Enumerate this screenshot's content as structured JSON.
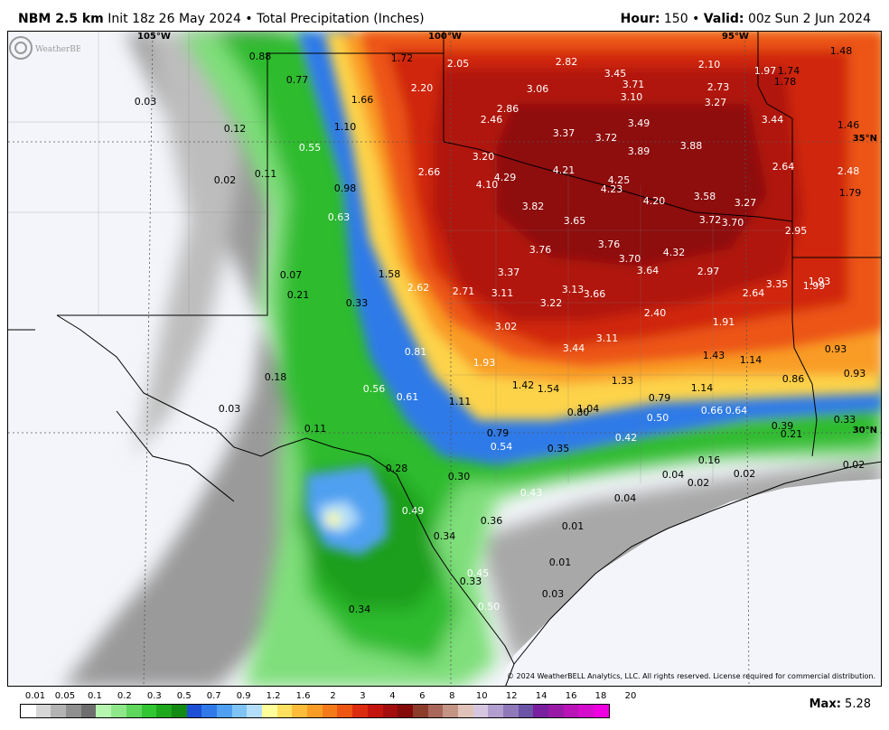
{
  "header": {
    "model": "NBM 2.5 km",
    "init": "Init 18z 26 May 2024",
    "separator": "•",
    "product": "Total Precipitation (Inches)",
    "hour_label": "Hour:",
    "hour_value": "150",
    "valid_label": "Valid:",
    "valid_value": "00z Sun 2 Jun 2024"
  },
  "map": {
    "coords": {
      "lon105": "105°W",
      "lon100": "100°W",
      "lon95": "95°W",
      "lat35": "35°N",
      "lat30": "30°N"
    },
    "copyright": "© 2024 WeatherBELL Analytics, LLC. All rights reserved. License required for commercial distribution.",
    "logo_text": "WeatherBELL",
    "labels": [
      {
        "text": "0.88",
        "c": "k"
      },
      {
        "text": "1.72",
        "c": "k"
      },
      {
        "text": "2.05",
        "c": "w"
      },
      {
        "text": "2.82",
        "c": "w"
      },
      {
        "text": "2.10",
        "c": "w"
      },
      {
        "text": "1.97",
        "c": "w"
      },
      {
        "text": "1.74",
        "c": "k"
      },
      {
        "text": "1.48",
        "c": "k"
      },
      {
        "text": "0.77",
        "c": "k"
      },
      {
        "text": "2.20",
        "c": "w"
      },
      {
        "text": "3.45",
        "c": "w"
      },
      {
        "text": "3.71",
        "c": "w"
      },
      {
        "text": "2.73",
        "c": "w"
      },
      {
        "text": "1.78",
        "c": "k"
      },
      {
        "text": "0.03",
        "c": "k"
      },
      {
        "text": "1.66",
        "c": "k"
      },
      {
        "text": "3.06",
        "c": "w"
      },
      {
        "text": "3.10",
        "c": "w"
      },
      {
        "text": "3.27",
        "c": "w"
      },
      {
        "text": "2.86",
        "c": "w"
      },
      {
        "text": "2.46",
        "c": "w"
      },
      {
        "text": "3.44",
        "c": "w"
      },
      {
        "text": "1.46",
        "c": "k"
      },
      {
        "text": "0.12",
        "c": "k"
      },
      {
        "text": "1.10",
        "c": "k"
      },
      {
        "text": "3.49",
        "c": "w"
      },
      {
        "text": "3.37",
        "c": "w"
      },
      {
        "text": "3.72",
        "c": "w"
      },
      {
        "text": "3.88",
        "c": "w"
      },
      {
        "text": "0.55",
        "c": "w"
      },
      {
        "text": "3.89",
        "c": "w"
      },
      {
        "text": "3.20",
        "c": "w"
      },
      {
        "text": "2.64",
        "c": "w"
      },
      {
        "text": "2.48",
        "c": "w"
      },
      {
        "text": "0.11",
        "c": "k"
      },
      {
        "text": "4.21",
        "c": "w"
      },
      {
        "text": "2.66",
        "c": "w"
      },
      {
        "text": "4.29",
        "c": "w"
      },
      {
        "text": "4.25",
        "c": "w"
      },
      {
        "text": "0.02",
        "c": "k"
      },
      {
        "text": "4.10",
        "c": "w"
      },
      {
        "text": "4.23",
        "c": "w"
      },
      {
        "text": "1.79",
        "c": "k"
      },
      {
        "text": "0.98",
        "c": "k"
      },
      {
        "text": "3.58",
        "c": "w"
      },
      {
        "text": "4.20",
        "c": "w"
      },
      {
        "text": "3.27",
        "c": "w"
      },
      {
        "text": "3.82",
        "c": "w"
      },
      {
        "text": "0.63",
        "c": "w"
      },
      {
        "text": "3.65",
        "c": "w"
      },
      {
        "text": "3.72",
        "c": "w"
      },
      {
        "text": "3.70",
        "c": "w"
      },
      {
        "text": "2.95",
        "c": "w"
      },
      {
        "text": "3.76",
        "c": "w"
      },
      {
        "text": "3.76",
        "c": "w"
      },
      {
        "text": "4.32",
        "c": "w"
      },
      {
        "text": "3.70",
        "c": "w"
      },
      {
        "text": "1.58",
        "c": "k"
      },
      {
        "text": "3.37",
        "c": "w"
      },
      {
        "text": "3.64",
        "c": "w"
      },
      {
        "text": "2.97",
        "c": "w"
      },
      {
        "text": "0.07",
        "c": "k"
      },
      {
        "text": "1.93",
        "c": "w"
      },
      {
        "text": "2.62",
        "c": "w"
      },
      {
        "text": "3.35",
        "c": "w"
      },
      {
        "text": "1.99",
        "c": "w"
      },
      {
        "text": "2.71",
        "c": "w"
      },
      {
        "text": "3.11",
        "c": "w"
      },
      {
        "text": "3.13",
        "c": "w"
      },
      {
        "text": "0.21",
        "c": "k"
      },
      {
        "text": "2.64",
        "c": "w"
      },
      {
        "text": "3.66",
        "c": "w"
      },
      {
        "text": "3.22",
        "c": "w"
      },
      {
        "text": "0.33",
        "c": "k"
      },
      {
        "text": "2.40",
        "c": "w"
      },
      {
        "text": "1.91",
        "c": "w"
      },
      {
        "text": "3.02",
        "c": "w"
      },
      {
        "text": "0.93",
        "c": "k"
      },
      {
        "text": "3.44",
        "c": "w"
      },
      {
        "text": "3.11",
        "c": "w"
      },
      {
        "text": "0.81",
        "c": "w"
      },
      {
        "text": "1.43",
        "c": "k"
      },
      {
        "text": "1.14",
        "c": "k"
      },
      {
        "text": "1.93",
        "c": "w"
      },
      {
        "text": "0.93",
        "c": "k"
      },
      {
        "text": "0.18",
        "c": "k"
      },
      {
        "text": "1.33",
        "c": "k"
      },
      {
        "text": "0.86",
        "c": "k"
      },
      {
        "text": "1.42",
        "c": "k"
      },
      {
        "text": "1.54",
        "c": "k"
      },
      {
        "text": "1.14",
        "c": "k"
      },
      {
        "text": "0.56",
        "c": "w"
      },
      {
        "text": "0.61",
        "c": "w"
      },
      {
        "text": "0.79",
        "c": "k"
      },
      {
        "text": "1.11",
        "c": "k"
      },
      {
        "text": "0.03",
        "c": "k"
      },
      {
        "text": "0.80",
        "c": "k"
      },
      {
        "text": "1.04",
        "c": "k"
      },
      {
        "text": "0.66",
        "c": "w"
      },
      {
        "text": "0.64",
        "c": "w"
      },
      {
        "text": "0.50",
        "c": "w"
      },
      {
        "text": "0.39",
        "c": "k"
      },
      {
        "text": "0.33",
        "c": "k"
      },
      {
        "text": "0.11",
        "c": "k"
      },
      {
        "text": "0.21",
        "c": "k"
      },
      {
        "text": "0.79",
        "c": "k"
      },
      {
        "text": "0.42",
        "c": "w"
      },
      {
        "text": "0.54",
        "c": "w"
      },
      {
        "text": "0.35",
        "c": "k"
      },
      {
        "text": "0.16",
        "c": "k"
      },
      {
        "text": "0.02",
        "c": "k"
      },
      {
        "text": "0.28",
        "c": "k"
      },
      {
        "text": "0.04",
        "c": "k"
      },
      {
        "text": "0.02",
        "c": "k"
      },
      {
        "text": "0.02",
        "c": "k"
      },
      {
        "text": "0.30",
        "c": "k"
      },
      {
        "text": "0.43",
        "c": "w"
      },
      {
        "text": "0.04",
        "c": "k"
      },
      {
        "text": "0.49",
        "c": "w"
      },
      {
        "text": "0.36",
        "c": "k"
      },
      {
        "text": "0.01",
        "c": "k"
      },
      {
        "text": "0.34",
        "c": "k"
      },
      {
        "text": "0.01",
        "c": "k"
      },
      {
        "text": "0.45",
        "c": "w"
      },
      {
        "text": "0.33",
        "c": "k"
      },
      {
        "text": "0.03",
        "c": "k"
      },
      {
        "text": "0.34",
        "c": "k"
      },
      {
        "text": "0.50",
        "c": "w"
      }
    ]
  },
  "legend": {
    "ticks": [
      "0.01",
      "0.05",
      "0.1",
      "0.2",
      "0.3",
      "0.5",
      "0.7",
      "0.9",
      "1.2",
      "1.6",
      "2",
      "3",
      "4",
      "6",
      "8",
      "10",
      "12",
      "14",
      "16",
      "18",
      "20"
    ],
    "colors": [
      "#ffffff",
      "#d6d6d6",
      "#b3b3b3",
      "#8f8f8f",
      "#6e6e6e",
      "#b6f5b0",
      "#8ee88a",
      "#5fd65c",
      "#32c632",
      "#1ea81e",
      "#138a13",
      "#1d4fd6",
      "#2f7ae8",
      "#4fa0f0",
      "#7fc3f5",
      "#b3defa",
      "#fdfd99",
      "#fde05f",
      "#fdbd3a",
      "#f99c25",
      "#f47a19",
      "#ec5512",
      "#dc2c10",
      "#c4140e",
      "#a40d0d",
      "#850a0a",
      "#8c3c2a",
      "#a8675a",
      "#c49485",
      "#e0c2b8",
      "#d6c6e0",
      "#b39fcf",
      "#8f79ba",
      "#6b54a5",
      "#7a1fa0",
      "#9a1aa8",
      "#b814b8",
      "#d40ccc",
      "#ee00e0"
    ],
    "max_label": "Max:",
    "max_value": "5.28"
  }
}
